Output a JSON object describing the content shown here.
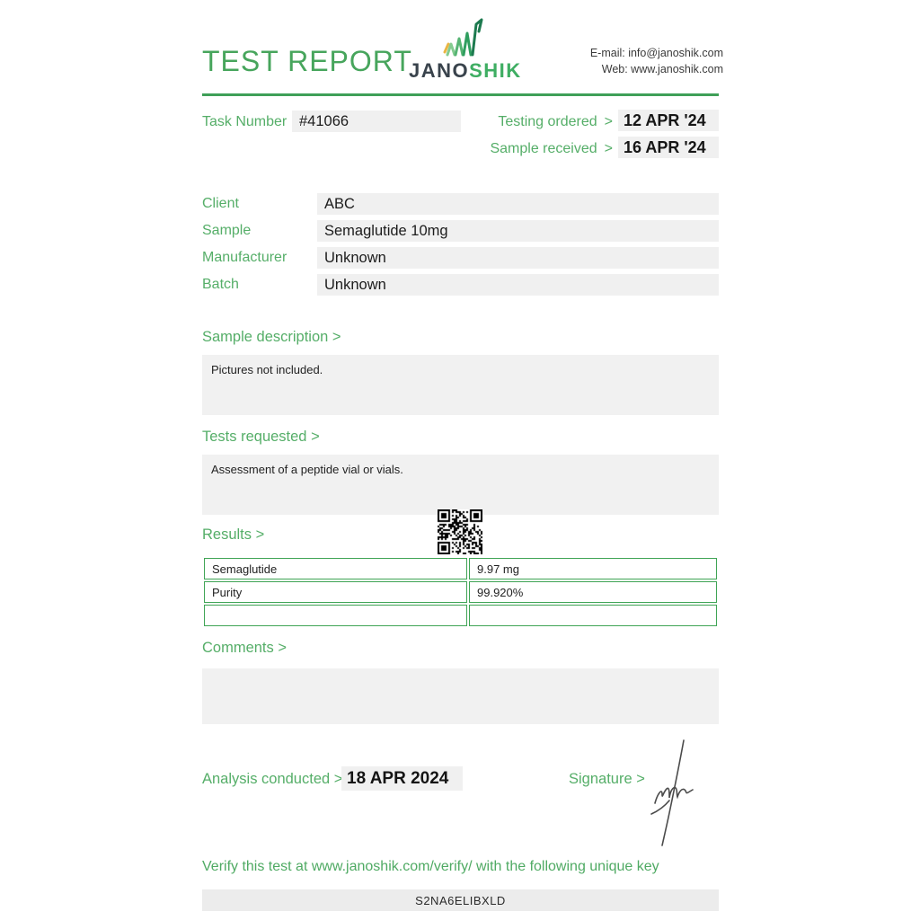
{
  "header": {
    "title": "TEST REPORT",
    "logo": {
      "icon": "rising-bars-logo-icon",
      "text_dark": "JANO",
      "text_green": "SHIK"
    },
    "contact": {
      "email_line": "E-mail: info@janoshik.com",
      "web_line": "Web: www.janoshik.com"
    }
  },
  "meta": {
    "arrow": ">",
    "task_number_label": "Task Number",
    "task_number": "#41066",
    "testing_ordered_label": "Testing ordered",
    "testing_ordered": "12 APR '24",
    "sample_received_label": "Sample received",
    "sample_received": "16 APR '24"
  },
  "details": {
    "rows": [
      {
        "label": "Client",
        "value": "ABC"
      },
      {
        "label": "Sample",
        "value": "Semaglutide 10mg"
      },
      {
        "label": "Manufacturer",
        "value": "Unknown"
      },
      {
        "label": "Batch",
        "value": "Unknown"
      }
    ]
  },
  "sections": {
    "sample_description": {
      "label": "Sample description >",
      "content": "Pictures not included."
    },
    "tests_requested": {
      "label": "Tests requested >",
      "content": "Assessment of a peptide vial or vials."
    },
    "results": {
      "label": "Results >",
      "qr_icon": "qr-code",
      "table": {
        "rows": [
          [
            "Semaglutide",
            "9.97 mg"
          ],
          [
            "Purity",
            "99.920%"
          ],
          [
            "",
            ""
          ]
        ]
      }
    },
    "comments": {
      "label": "Comments >",
      "content": ""
    }
  },
  "footer": {
    "analysis_label": "Analysis conducted >",
    "analysis_date": "18 APR 2024",
    "signature_label": "Signature >",
    "signature_icon": "handwritten-signature",
    "verify_text": "Verify this test at www.janoshik.com/verify/ with the following unique key",
    "unique_key": "S2NA6ELIBXLD"
  },
  "colors": {
    "accent_green": "#4faa63",
    "rule_green": "#3f9f58",
    "table_border_green": "#3fa455",
    "field_gray": "#f0f0f0",
    "box_gray": "#f1f1f1",
    "logo_dark": "#39434c",
    "logo_orange_accent": "#e9b544"
  }
}
